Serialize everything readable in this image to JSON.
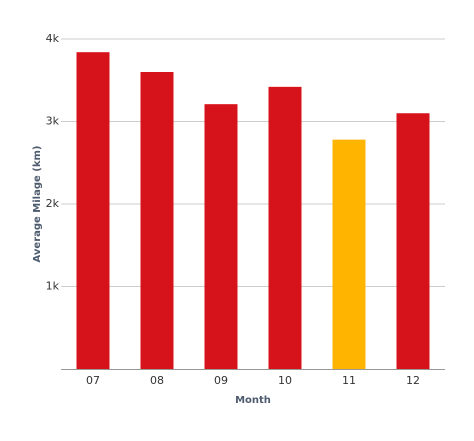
{
  "chart_data": {
    "type": "bar",
    "x_label": "Month",
    "y_label": "Average Milage (km)",
    "categories": [
      "07",
      "08",
      "09",
      "10",
      "11",
      "12"
    ],
    "values": [
      3840,
      3600,
      3210,
      3420,
      2780,
      3100
    ],
    "colors": [
      "#d6131b",
      "#d6131b",
      "#d6131b",
      "#d6131b",
      "#ffb400",
      "#d6131b"
    ],
    "ylim": [
      0,
      4000
    ],
    "yticks": [
      {
        "value": 1000,
        "label": "1k"
      },
      {
        "value": 2000,
        "label": "2k"
      },
      {
        "value": 3000,
        "label": "3k"
      },
      {
        "value": 4000,
        "label": "4k"
      }
    ],
    "grid": true
  }
}
